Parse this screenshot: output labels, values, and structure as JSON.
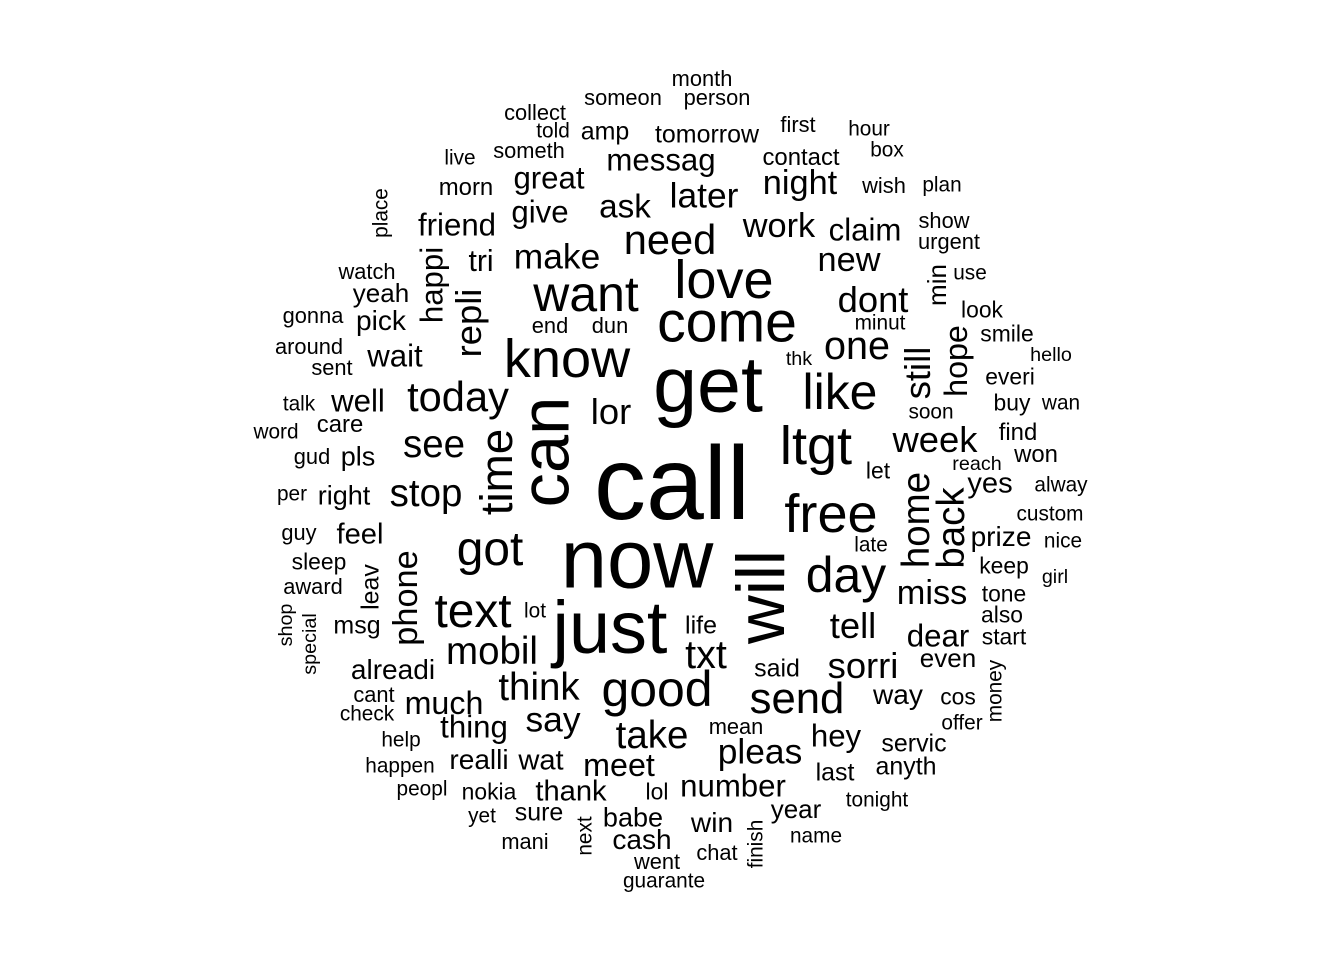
{
  "word_cloud": {
    "text_color": "#000000",
    "background_color": "#ffffff",
    "words": [
      {
        "text": "call",
        "weight": 100
      },
      {
        "text": "now",
        "weight": 80
      },
      {
        "text": "get",
        "weight": 76
      },
      {
        "text": "can",
        "weight": 66
      },
      {
        "text": "will",
        "weight": 65
      },
      {
        "text": "just",
        "weight": 71
      },
      {
        "text": "come",
        "weight": 55
      },
      {
        "text": "know",
        "weight": 52
      },
      {
        "text": "want",
        "weight": 48
      },
      {
        "text": "love",
        "weight": 52
      },
      {
        "text": "like",
        "weight": 48
      },
      {
        "text": "ltgt",
        "weight": 52
      },
      {
        "text": "free",
        "weight": 52
      },
      {
        "text": "day",
        "weight": 48
      },
      {
        "text": "good",
        "weight": 48
      },
      {
        "text": "got",
        "weight": 46
      },
      {
        "text": "text",
        "weight": 46
      },
      {
        "text": "time",
        "weight": 44
      },
      {
        "text": "send",
        "weight": 42
      },
      {
        "text": "today",
        "weight": 40
      },
      {
        "text": "need",
        "weight": 40
      },
      {
        "text": "think",
        "weight": 37
      },
      {
        "text": "mobil",
        "weight": 37
      },
      {
        "text": "txt",
        "weight": 38
      },
      {
        "text": "see",
        "weight": 37
      },
      {
        "text": "stop",
        "weight": 37
      },
      {
        "text": "one",
        "weight": 38
      },
      {
        "text": "dont",
        "weight": 35
      },
      {
        "text": "week",
        "weight": 35
      },
      {
        "text": "home",
        "weight": 37
      },
      {
        "text": "back",
        "weight": 37
      },
      {
        "text": "repli",
        "weight": 35
      },
      {
        "text": "phone",
        "weight": 33
      },
      {
        "text": "sorri",
        "weight": 35
      },
      {
        "text": "take",
        "weight": 37
      },
      {
        "text": "say",
        "weight": 34
      },
      {
        "text": "tell",
        "weight": 35
      },
      {
        "text": "pleas",
        "weight": 34
      },
      {
        "text": "still",
        "weight": 35
      },
      {
        "text": "make",
        "weight": 34
      },
      {
        "text": "later",
        "weight": 34
      },
      {
        "text": "ask",
        "weight": 32
      },
      {
        "text": "lor",
        "weight": 35
      },
      {
        "text": "miss",
        "weight": 33
      },
      {
        "text": "much",
        "weight": 31
      },
      {
        "text": "night",
        "weight": 33
      },
      {
        "text": "new",
        "weight": 33
      },
      {
        "text": "work",
        "weight": 33
      },
      {
        "text": "hope",
        "weight": 31
      },
      {
        "text": "great",
        "weight": 30
      },
      {
        "text": "messag",
        "weight": 30
      },
      {
        "text": "give",
        "weight": 30
      },
      {
        "text": "friend",
        "weight": 30
      },
      {
        "text": "happi",
        "weight": 30
      },
      {
        "text": "wait",
        "weight": 30
      },
      {
        "text": "well",
        "weight": 30
      },
      {
        "text": "claim",
        "weight": 30
      },
      {
        "text": "dear",
        "weight": 30
      },
      {
        "text": "meet",
        "weight": 31
      },
      {
        "text": "thing",
        "weight": 30
      },
      {
        "text": "number",
        "weight": 30
      },
      {
        "text": "hey",
        "weight": 30
      },
      {
        "text": "feel",
        "weight": 28
      },
      {
        "text": "pick",
        "weight": 27
      },
      {
        "text": "tri",
        "weight": 29
      },
      {
        "text": "wat",
        "weight": 28
      },
      {
        "text": "thank",
        "weight": 28
      },
      {
        "text": "alreadi",
        "weight": 27
      },
      {
        "text": "yes",
        "weight": 28
      },
      {
        "text": "prize",
        "weight": 27
      },
      {
        "text": "way",
        "weight": 27
      },
      {
        "text": "realli",
        "weight": 27
      },
      {
        "text": "win",
        "weight": 27
      },
      {
        "text": "cash",
        "weight": 27
      },
      {
        "text": "babe",
        "weight": 26
      },
      {
        "text": "right",
        "weight": 26
      },
      {
        "text": "pls",
        "weight": 26
      },
      {
        "text": "yeah",
        "weight": 25
      },
      {
        "text": "min",
        "weight": 25
      },
      {
        "text": "even",
        "weight": 25
      },
      {
        "text": "year",
        "weight": 25
      },
      {
        "text": "sure",
        "weight": 24
      },
      {
        "text": "msg",
        "weight": 24
      },
      {
        "text": "said",
        "weight": 24
      },
      {
        "text": "last",
        "weight": 24
      },
      {
        "text": "anyth",
        "weight": 24
      },
      {
        "text": "servic",
        "weight": 24
      },
      {
        "text": "life",
        "weight": 24
      },
      {
        "text": "amp",
        "weight": 24
      },
      {
        "text": "tomorrow",
        "weight": 24
      },
      {
        "text": "contact",
        "weight": 23
      },
      {
        "text": "morn",
        "weight": 23
      },
      {
        "text": "leav",
        "weight": 24
      },
      {
        "text": "care",
        "weight": 23
      },
      {
        "text": "find",
        "weight": 23
      },
      {
        "text": "won",
        "weight": 23
      },
      {
        "text": "sleep",
        "weight": 22
      },
      {
        "text": "everi",
        "weight": 22
      },
      {
        "text": "buy",
        "weight": 22
      },
      {
        "text": "smile",
        "weight": 22
      },
      {
        "text": "look",
        "weight": 22
      },
      {
        "text": "keep",
        "weight": 22
      },
      {
        "text": "tone",
        "weight": 22
      },
      {
        "text": "also",
        "weight": 22
      },
      {
        "text": "start",
        "weight": 22
      },
      {
        "text": "let",
        "weight": 22
      },
      {
        "text": "urgent",
        "weight": 21
      },
      {
        "text": "wish",
        "weight": 21
      },
      {
        "text": "show",
        "weight": 21
      },
      {
        "text": "first",
        "weight": 21
      },
      {
        "text": "watch",
        "weight": 21
      },
      {
        "text": "end",
        "weight": 21
      },
      {
        "text": "dun",
        "weight": 21
      },
      {
        "text": "cos",
        "weight": 22
      },
      {
        "text": "lol",
        "weight": 22
      },
      {
        "text": "nokia",
        "weight": 22
      },
      {
        "text": "someth",
        "weight": 21
      },
      {
        "text": "someon",
        "weight": 21
      },
      {
        "text": "person",
        "weight": 21
      },
      {
        "text": "month",
        "weight": 21
      },
      {
        "text": "collect",
        "weight": 21
      },
      {
        "text": "told",
        "weight": 20
      },
      {
        "text": "hour",
        "weight": 20
      },
      {
        "text": "box",
        "weight": 20
      },
      {
        "text": "plan",
        "weight": 20
      },
      {
        "text": "place",
        "weight": 20
      },
      {
        "text": "live",
        "weight": 20
      },
      {
        "text": "gonna",
        "weight": 21
      },
      {
        "text": "around",
        "weight": 21
      },
      {
        "text": "sent",
        "weight": 21
      },
      {
        "text": "talk",
        "weight": 20
      },
      {
        "text": "word",
        "weight": 20
      },
      {
        "text": "gud",
        "weight": 21
      },
      {
        "text": "per",
        "weight": 20
      },
      {
        "text": "guy",
        "weight": 21
      },
      {
        "text": "award",
        "weight": 21
      },
      {
        "text": "shop",
        "weight": 19
      },
      {
        "text": "special",
        "weight": 19
      },
      {
        "text": "cant",
        "weight": 21
      },
      {
        "text": "check",
        "weight": 20
      },
      {
        "text": "help",
        "weight": 20
      },
      {
        "text": "happen",
        "weight": 20
      },
      {
        "text": "peopl",
        "weight": 20
      },
      {
        "text": "yet",
        "weight": 20
      },
      {
        "text": "mani",
        "weight": 21
      },
      {
        "text": "next",
        "weight": 20
      },
      {
        "text": "went",
        "weight": 21
      },
      {
        "text": "guarante",
        "weight": 20
      },
      {
        "text": "chat",
        "weight": 21
      },
      {
        "text": "finish",
        "weight": 20
      },
      {
        "text": "name",
        "weight": 20
      },
      {
        "text": "tonight",
        "weight": 20
      },
      {
        "text": "mean",
        "weight": 21
      },
      {
        "text": "offer",
        "weight": 20
      },
      {
        "text": "money",
        "weight": 20
      },
      {
        "text": "girl",
        "weight": 19
      },
      {
        "text": "nice",
        "weight": 20
      },
      {
        "text": "custom",
        "weight": 20
      },
      {
        "text": "alway",
        "weight": 20
      },
      {
        "text": "reach",
        "weight": 19
      },
      {
        "text": "wan",
        "weight": 20
      },
      {
        "text": "hello",
        "weight": 19
      },
      {
        "text": "soon",
        "weight": 20
      },
      {
        "text": "minut",
        "weight": 20
      },
      {
        "text": "late",
        "weight": 20
      },
      {
        "text": "lot",
        "weight": 20
      },
      {
        "text": "thk",
        "weight": 19
      },
      {
        "text": "use",
        "weight": 20
      }
    ]
  }
}
